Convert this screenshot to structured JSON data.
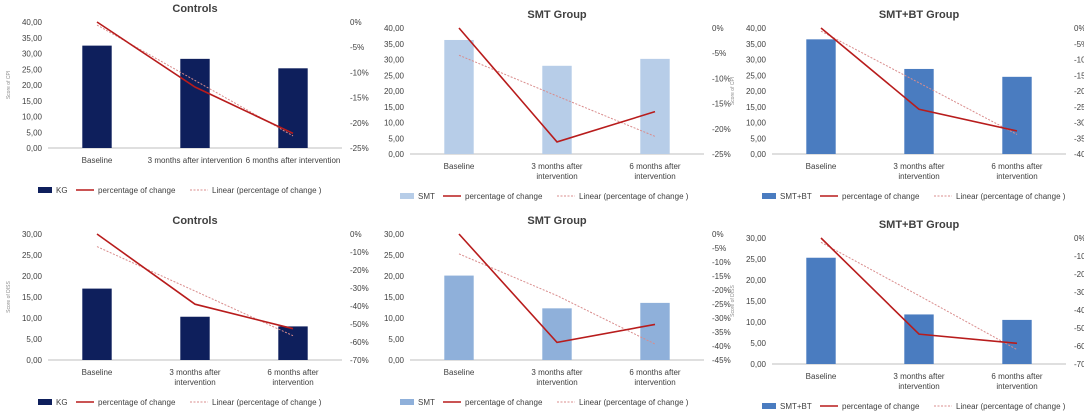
{
  "colors": {
    "line": "#b81c1c",
    "trend": "#d98c8c",
    "axis": "#bfbfbf",
    "text": "#404040"
  },
  "chart_data": [
    {
      "type": "bar",
      "title": "Controls",
      "ylabel": "Score of CPI",
      "categories": [
        "Baseline",
        "3 months after intervention",
        "6 months after intervention"
      ],
      "category_lines": [
        [
          "Baseline"
        ],
        [
          "3 months after intervention"
        ],
        [
          "6 months after intervention"
        ]
      ],
      "values": [
        32.5,
        28.3,
        25.3
      ],
      "bar_series": "KG",
      "bar_color": "#0e1f5c",
      "ylim": [
        0,
        40
      ],
      "yticks": [
        "0,00",
        "5,00",
        "10,00",
        "15,00",
        "20,00",
        "25,00",
        "30,00",
        "35,00",
        "40,00"
      ],
      "y2lim": [
        -25,
        0
      ],
      "y2ticks": [
        "0%",
        "-5%",
        "-10%",
        "-15%",
        "-20%",
        "-25%"
      ],
      "pct": [
        0,
        -12.9,
        -22.1
      ],
      "trend": [
        -0.6,
        -11.6,
        -22.6
      ],
      "line_series": "percentage of change",
      "trend_series": "Linear (percentage of change )"
    },
    {
      "type": "bar",
      "title": "SMT Group",
      "ylabel": "",
      "categories": [
        "Baseline",
        "3 months after intervention",
        "6 months after intervention"
      ],
      "category_lines": [
        [
          "Baseline"
        ],
        [
          "3 months after",
          "intervention"
        ],
        [
          "6 months after",
          "intervention"
        ]
      ],
      "values": [
        36.2,
        28.0,
        30.2
      ],
      "bar_series": "SMT",
      "bar_color": "#b7cde8",
      "ylim": [
        0,
        40
      ],
      "yticks": [
        "0,00",
        "5,00",
        "10,00",
        "15,00",
        "20,00",
        "25,00",
        "30,00",
        "35,00",
        "40,00"
      ],
      "y2lim": [
        -25,
        0
      ],
      "y2ticks": [
        "0%",
        "-5%",
        "-10%",
        "-15%",
        "-20%",
        "-25%"
      ],
      "pct": [
        0,
        -22.6,
        -16.6
      ],
      "trend": [
        -5.4,
        -13.5,
        -21.5
      ],
      "line_series": "percentage of change",
      "trend_series": "Linear (percentage of change )"
    },
    {
      "type": "bar",
      "title": "SMT+BT Group",
      "ylabel": "Score of CPI",
      "categories": [
        "Baseline",
        "3 months after intervention",
        "6 months after intervention"
      ],
      "category_lines": [
        [
          "Baseline"
        ],
        [
          "3 months after",
          "intervention"
        ],
        [
          "6 months after",
          "intervention"
        ]
      ],
      "values": [
        36.4,
        27.0,
        24.5
      ],
      "bar_series": "SMT+BT",
      "bar_color": "#4a7cc0",
      "ylim": [
        0,
        40
      ],
      "yticks": [
        "0,00",
        "5,00",
        "10,00",
        "15,00",
        "20,00",
        "25,00",
        "30,00",
        "35,00",
        "40,00"
      ],
      "y2lim": [
        -40,
        0
      ],
      "y2ticks": [
        "0%",
        "-5%",
        "-10%",
        "-15%",
        "-20%",
        "-25%",
        "-30%",
        "-35%",
        "-40%"
      ],
      "pct": [
        0,
        -25.8,
        -32.7
      ],
      "trend": [
        -1.0,
        -17.4,
        -33.8
      ],
      "line_series": "percentage of change",
      "trend_series": "Linear (percentage of change )"
    },
    {
      "type": "bar",
      "title": "Controls",
      "ylabel": "Score of DISS",
      "categories": [
        "Baseline",
        "3 months after intervention",
        "6 months after intervention"
      ],
      "category_lines": [
        [
          "Baseline"
        ],
        [
          "3 months after",
          "intervention"
        ],
        [
          "6 months after",
          "intervention"
        ]
      ],
      "values": [
        17.0,
        10.3,
        8.0
      ],
      "bar_series": "KG",
      "bar_color": "#0e1f5c",
      "ylim": [
        0,
        30
      ],
      "yticks": [
        "0,00",
        "5,00",
        "10,00",
        "15,00",
        "20,00",
        "25,00",
        "30,00"
      ],
      "y2lim": [
        -70,
        0
      ],
      "y2ticks": [
        "0%",
        "-10%",
        "-20%",
        "-30%",
        "-40%",
        "-50%",
        "-60%",
        "-70%"
      ],
      "pct": [
        0,
        -39.0,
        -52.6
      ],
      "trend": [
        -7.0,
        -31.7,
        -56.5
      ],
      "line_series": "percentage of change",
      "trend_series": "Linear (percentage of change )"
    },
    {
      "type": "bar",
      "title": "SMT Group",
      "ylabel": "",
      "categories": [
        "Baseline",
        "3 months after intervention",
        "6 months after intervention"
      ],
      "category_lines": [
        [
          "Baseline"
        ],
        [
          "3 months after",
          "intervention"
        ],
        [
          "6 months after",
          "intervention"
        ]
      ],
      "values": [
        20.1,
        12.3,
        13.6
      ],
      "bar_series": "SMT",
      "bar_color": "#8fb0da",
      "ylim": [
        0,
        30
      ],
      "yticks": [
        "0,00",
        "5,00",
        "10,00",
        "15,00",
        "20,00",
        "25,00",
        "30,00"
      ],
      "y2lim": [
        -45,
        0
      ],
      "y2ticks": [
        "0%",
        "-5%",
        "-10%",
        "-15%",
        "-20%",
        "-25%",
        "-30%",
        "-35%",
        "-40%",
        "-45%"
      ],
      "pct": [
        0,
        -38.7,
        -32.3
      ],
      "trend": [
        -7.1,
        -22.0,
        -39.3
      ],
      "line_series": "percentage of change",
      "trend_series": "Linear (percentage of change )"
    },
    {
      "type": "bar",
      "title": "SMT+BT Group",
      "ylabel": "Score of DISS",
      "categories": [
        "Baseline",
        "3 months after intervention",
        "6 months after intervention"
      ],
      "category_lines": [
        [
          "Baseline"
        ],
        [
          "3 months after",
          "intervention"
        ],
        [
          "6 months after",
          "intervention"
        ]
      ],
      "values": [
        25.3,
        11.8,
        10.5
      ],
      "bar_series": "SMT+BT",
      "bar_color": "#4a7cc0",
      "ylim": [
        0,
        30
      ],
      "yticks": [
        "0,00",
        "5,00",
        "10,00",
        "15,00",
        "20,00",
        "25,00",
        "30,00"
      ],
      "y2lim": [
        -70,
        0
      ],
      "y2ticks": [
        "0%",
        "-10%",
        "-20%",
        "-30%",
        "-40%",
        "-50%",
        "-60%",
        "-70%"
      ],
      "pct": [
        0,
        -53.4,
        -58.5
      ],
      "trend": [
        -2.4,
        -32.0,
        -62.0
      ],
      "line_series": "percentage of change",
      "trend_series": "Linear (percentage of change )"
    }
  ]
}
